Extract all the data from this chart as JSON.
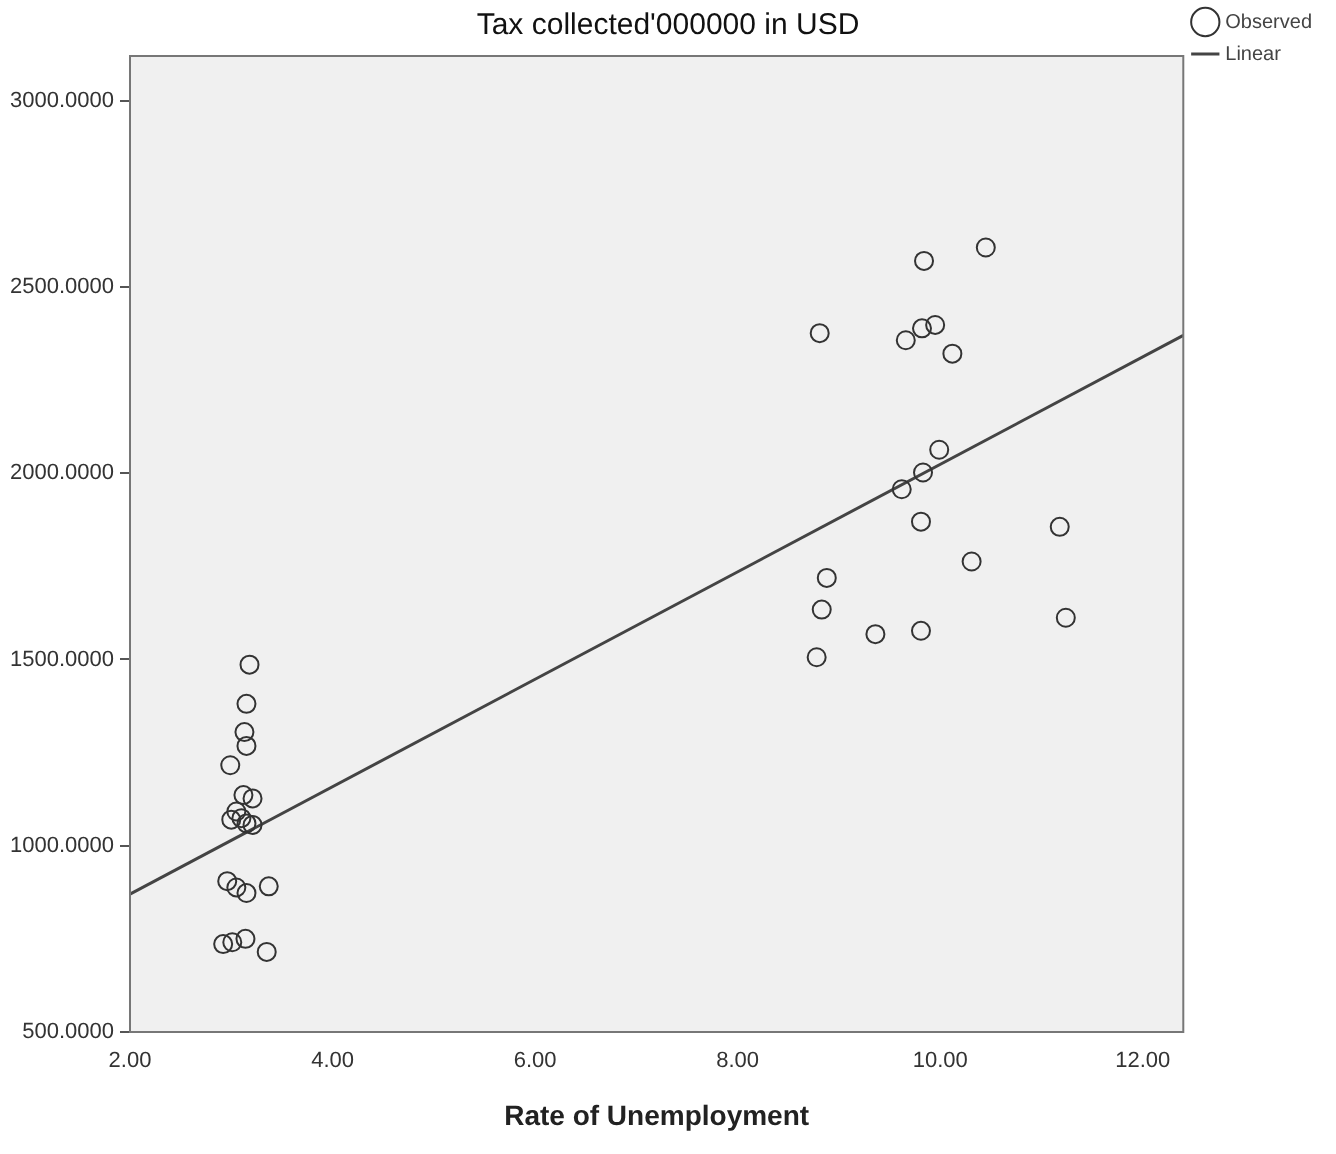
{
  "chart_data": {
    "type": "scatter",
    "title": "Tax collected'000000 in USD",
    "xlabel": "Rate of Unemployment",
    "xlim": [
      2,
      12.4
    ],
    "ylim": [
      500,
      3120
    ],
    "xticks": [
      {
        "value": 2,
        "label": "2.00"
      },
      {
        "value": 4,
        "label": "4.00"
      },
      {
        "value": 6,
        "label": "6.00"
      },
      {
        "value": 8,
        "label": "8.00"
      },
      {
        "value": 10,
        "label": "10.00"
      },
      {
        "value": 12,
        "label": "12.00"
      }
    ],
    "yticks": [
      {
        "value": 500,
        "label": "500.0000"
      },
      {
        "value": 1000,
        "label": "1000.0000"
      },
      {
        "value": 1500,
        "label": "1500.0000"
      },
      {
        "value": 2000,
        "label": "2000.0000"
      },
      {
        "value": 2500,
        "label": "2500.0000"
      },
      {
        "value": 3000,
        "label": "3000.0000"
      }
    ],
    "grid": false,
    "legend": "top right",
    "marker": "circle",
    "series": [
      {
        "name": "Observed",
        "color": "#333333",
        "x": [
          3.18,
          3.15,
          3.13,
          3.15,
          2.99,
          3.12,
          3.21,
          3.05,
          3.0,
          3.15,
          3.21,
          3.1,
          2.96,
          3.05,
          3.15,
          3.37,
          2.92,
          3.01,
          3.14,
          3.35,
          9.84,
          10.45,
          8.81,
          9.66,
          9.82,
          9.95,
          10.12,
          9.99,
          9.83,
          9.62,
          9.81,
          11.18,
          10.31,
          8.88,
          8.83,
          9.36,
          9.81,
          11.24,
          8.78
        ],
        "values": [
          1486,
          1381,
          1305,
          1268,
          1216,
          1136,
          1127,
          1092,
          1070,
          1060,
          1056,
          1074,
          905,
          888,
          873,
          891,
          736,
          741,
          750,
          715,
          2570,
          2606,
          2376,
          2357,
          2389,
          2398,
          2321,
          2063,
          2002,
          1957,
          1870,
          1856,
          1763,
          1719,
          1634,
          1568,
          1577,
          1612,
          1506
        ]
      },
      {
        "name": "Linear",
        "type": "line",
        "color": "#444444",
        "line_style": "solid",
        "marker": "none",
        "x": [
          2,
          12.4
        ],
        "values": [
          870,
          2370
        ]
      }
    ]
  }
}
